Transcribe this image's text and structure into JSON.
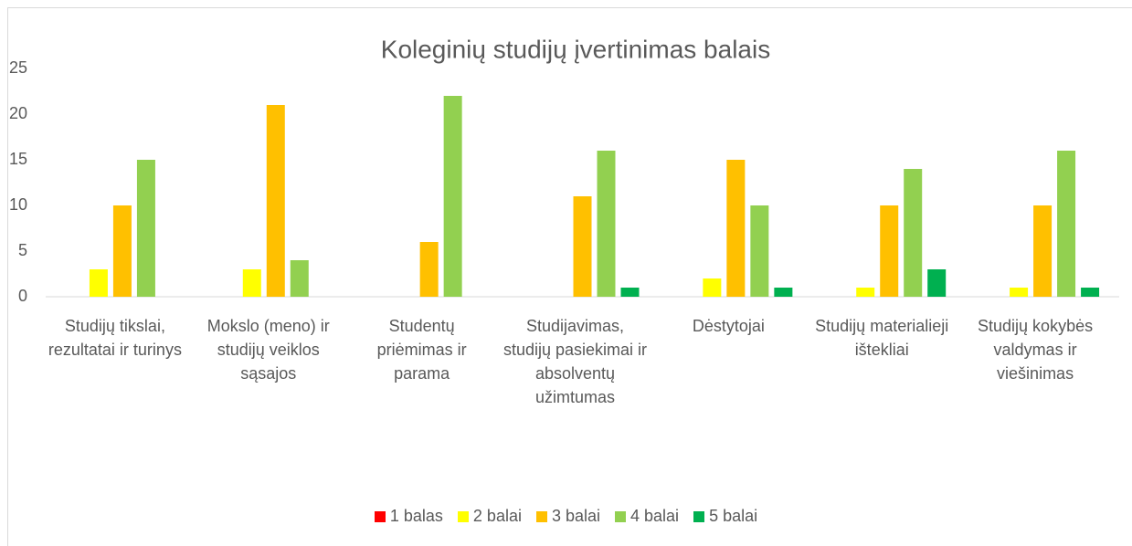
{
  "chart_data": {
    "type": "bar",
    "title": "Koleginių studijų įvertinimas balais",
    "categories": [
      "Studijų tikslai, rezultatai ir turinys",
      "Mokslo (meno) ir studijų veiklos sąsajos",
      "Studentų priėmimas ir parama",
      "Studijavimas, studijų pasiekimai ir absolventų užimtumas",
      "Dėstytojai",
      "Studijų materialieji ištekliai",
      "Studijų kokybės valdymas ir viešinimas"
    ],
    "series": [
      {
        "name": "1 balas",
        "color": "#ff0000",
        "values": [
          0,
          0,
          0,
          0,
          0,
          0,
          0
        ]
      },
      {
        "name": "2 balai",
        "color": "#ffff00",
        "values": [
          3,
          3,
          0,
          0,
          2,
          1,
          1
        ]
      },
      {
        "name": "3 balai",
        "color": "#ffc000",
        "values": [
          10,
          21,
          6,
          11,
          15,
          10,
          10
        ]
      },
      {
        "name": "4 balai",
        "color": "#92d050",
        "values": [
          15,
          4,
          22,
          16,
          10,
          14,
          16
        ]
      },
      {
        "name": "5 balai",
        "color": "#00b050",
        "values": [
          0,
          0,
          0,
          1,
          1,
          3,
          1
        ]
      }
    ],
    "ylim": [
      0,
      25
    ],
    "yticks": [
      0,
      5,
      10,
      15,
      20,
      25
    ],
    "grid": false,
    "legend": "bottom"
  }
}
